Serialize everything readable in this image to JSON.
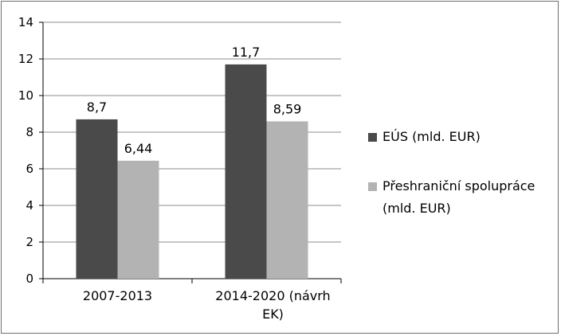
{
  "chart_data": {
    "type": "bar",
    "categories": [
      "2007-2013",
      "2014-2020 (návrh EK)"
    ],
    "category_lines": [
      [
        "2007-2013"
      ],
      [
        "2014-2020 (návrh",
        "EK)"
      ]
    ],
    "series": [
      {
        "name": "EÚS (mld. EUR)",
        "values": [
          8.7,
          11.7
        ],
        "labels": [
          "8,7",
          "11,7"
        ],
        "color": "#4a4a4a"
      },
      {
        "name": "Přeshraniční spolupráce (mld. EUR)",
        "name_lines": [
          "Přeshraniční spolupráce",
          "(mld. EUR)"
        ],
        "values": [
          6.44,
          8.59
        ],
        "labels": [
          "6,44",
          "8,59"
        ],
        "color": "#b3b3b3"
      }
    ],
    "ylim": [
      0,
      14
    ],
    "yticks": [
      0,
      2,
      4,
      6,
      8,
      10,
      12,
      14
    ],
    "grid": true,
    "legend_position": "right"
  }
}
